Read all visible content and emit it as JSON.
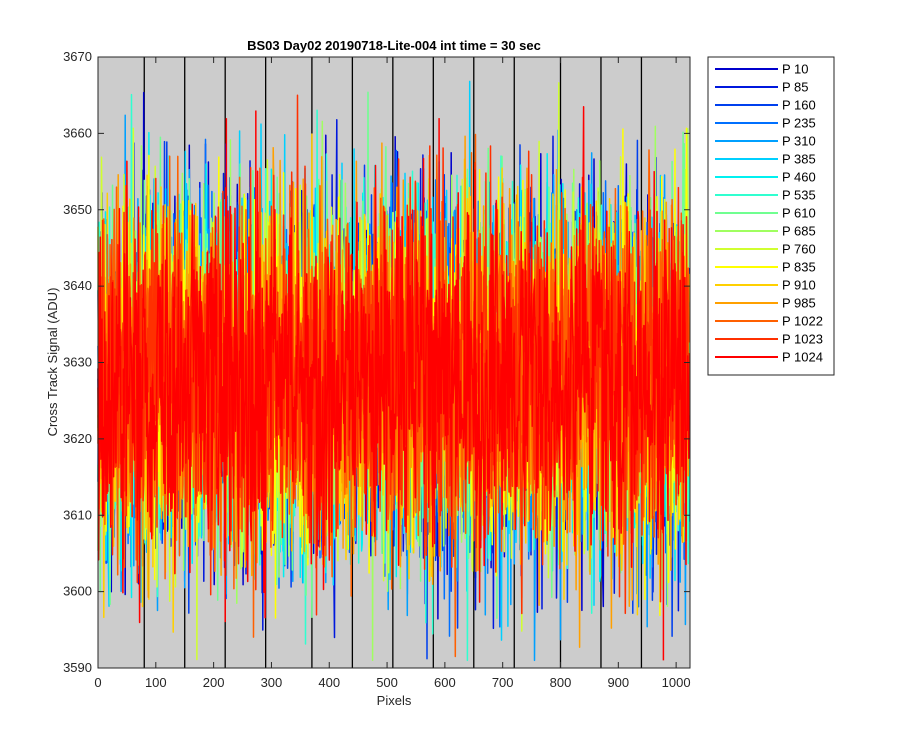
{
  "chart_data": {
    "type": "line",
    "title": "BS03 Day02 20190718-Lite-004 int time = 30 sec",
    "xlabel": "Pixels",
    "ylabel": "Cross Track Signal (ADU)",
    "xlim": [
      0,
      1024
    ],
    "ylim": [
      3590,
      3670
    ],
    "xticks": [
      0,
      100,
      200,
      300,
      400,
      500,
      600,
      700,
      800,
      900,
      1000
    ],
    "yticks": [
      3590,
      3600,
      3610,
      3620,
      3630,
      3640,
      3650,
      3660,
      3670
    ],
    "grid": false,
    "plot_background": "#cccccc",
    "vertical_lines_x": [
      80,
      150,
      220,
      290,
      370,
      440,
      510,
      580,
      650,
      720,
      800,
      870,
      940
    ],
    "legend_position": "outside-top-right",
    "signal_mean": 3628,
    "signal_typical_range": [
      3605,
      3650
    ],
    "series": [
      {
        "name": "P 10",
        "color": "#0000cc"
      },
      {
        "name": "P 85",
        "color": "#0018dd"
      },
      {
        "name": "P 160",
        "color": "#0040ee"
      },
      {
        "name": "P 235",
        "color": "#0070ff"
      },
      {
        "name": "P 310",
        "color": "#00a0ff"
      },
      {
        "name": "P 385",
        "color": "#00d0ff"
      },
      {
        "name": "P 460",
        "color": "#00f0f0"
      },
      {
        "name": "P 535",
        "color": "#30ffd0"
      },
      {
        "name": "P 610",
        "color": "#70ff90"
      },
      {
        "name": "P 685",
        "color": "#a0ff60"
      },
      {
        "name": "P 760",
        "color": "#d0ff30"
      },
      {
        "name": "P 835",
        "color": "#ffff00"
      },
      {
        "name": "P 910",
        "color": "#ffd000"
      },
      {
        "name": "P 985",
        "color": "#ffa000"
      },
      {
        "name": "P 1022",
        "color": "#ff6000"
      },
      {
        "name": "P 1023",
        "color": "#ff3000"
      },
      {
        "name": "P 1024",
        "color": "#ff0000"
      }
    ],
    "notable_points": [
      {
        "x": 590,
        "y": 3662
      },
      {
        "x": 222,
        "y": 3662
      },
      {
        "x": 273,
        "y": 3663
      },
      {
        "x": 978,
        "y": 3591
      },
      {
        "x": 220,
        "y": 3596
      }
    ]
  }
}
